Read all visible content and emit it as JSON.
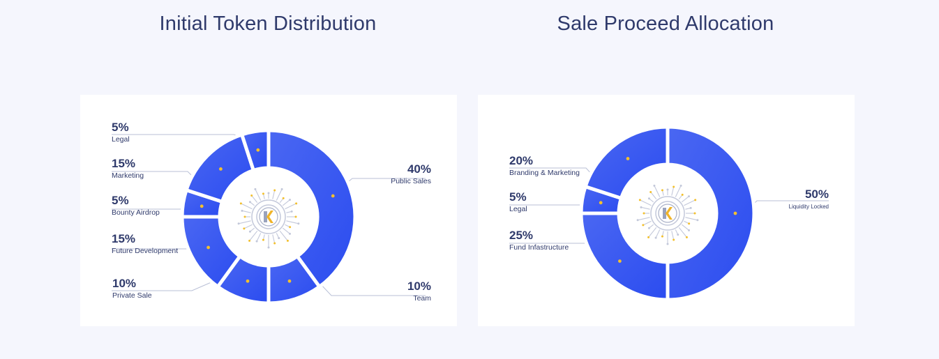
{
  "chart_data": [
    {
      "type": "pie",
      "title": "Initial Token Distribution",
      "slices": [
        {
          "label": "Public Sales",
          "value": 40,
          "value_label": "40%"
        },
        {
          "label": "Team",
          "value": 10,
          "value_label": "10%"
        },
        {
          "label": "Private Sale",
          "value": 10,
          "value_label": "10%"
        },
        {
          "label": "Future Development",
          "value": 15,
          "value_label": "15%"
        },
        {
          "label": "Bounty Airdrop",
          "value": 5,
          "value_label": "5%"
        },
        {
          "label": "Marketing",
          "value": 15,
          "value_label": "15%"
        },
        {
          "label": "Legal",
          "value": 5,
          "value_label": "5%"
        }
      ]
    },
    {
      "type": "pie",
      "title": "Sale Proceed Allocation",
      "slices": [
        {
          "label": "Liquidity Locked",
          "value": 50,
          "value_label": "50%"
        },
        {
          "label": "Fund Infastructure",
          "value": 25,
          "value_label": "25%"
        },
        {
          "label": "Legal",
          "value": 5,
          "value_label": "5%"
        },
        {
          "label": "Branding & Marketing",
          "value": 20,
          "value_label": "20%"
        }
      ]
    }
  ],
  "colors": {
    "slice_dark": "#2b4cf0",
    "slice_light": "#4a67f2",
    "dot": "#f3c02d",
    "text": "#2f3a6b",
    "leader": "#b8bfd6"
  }
}
